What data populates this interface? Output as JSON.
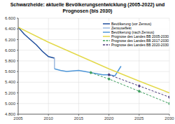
{
  "chart_data": {
    "type": "line",
    "title": "Schwarzheide: aktuelle Bevölkerungsentwicklung (2005-2022) und Prognosen (bis 2030)",
    "xlim": [
      2005,
      2030
    ],
    "xticks": [
      2005,
      2010,
      2015,
      2020,
      2025,
      2030
    ],
    "ylim": [
      4800,
      6600
    ],
    "yticks": [
      {
        "value": 4800,
        "label": "4.800"
      },
      {
        "value": 5000,
        "label": "5.000"
      },
      {
        "value": 5200,
        "label": "5.200"
      },
      {
        "value": 5400,
        "label": "5.400"
      },
      {
        "value": 5600,
        "label": "5.600"
      },
      {
        "value": 5800,
        "label": "5.800"
      },
      {
        "value": 6000,
        "label": "6.000"
      },
      {
        "value": 6200,
        "label": "6.200"
      },
      {
        "value": 6400,
        "label": "6.400"
      },
      {
        "value": 6600,
        "label": "6.600"
      }
    ],
    "grid": true,
    "legend": "upper right",
    "series": [
      {
        "name": "Bevölkerung (vor Zensus)",
        "color": "#1f4e9c",
        "line_style": "solid",
        "x": [
          2005,
          2006,
          2007,
          2008,
          2009,
          2010,
          2011
        ],
        "values": [
          6430,
          6300,
          6200,
          6100,
          5980,
          5880,
          5850
        ]
      },
      {
        "name": "Zensuseffekt",
        "color": "#9db8de",
        "line_style": "solid",
        "x": [
          2011,
          2011
        ],
        "values": [
          5850,
          5650
        ]
      },
      {
        "name": "Bevölkerung (nach Zensus)",
        "color": "#4f97d9",
        "line_style": "solid",
        "x": [
          2011,
          2012,
          2013,
          2014,
          2015,
          2016,
          2017,
          2018,
          2019,
          2020,
          2021,
          2022
        ],
        "values": [
          5650,
          5620,
          5600,
          5610,
          5620,
          5600,
          5580,
          5560,
          5540,
          5540,
          5520,
          5700
        ]
      },
      {
        "name": "Prognose des Landes BB 2005-2030",
        "color": "#e3d94a",
        "line_style": "solid",
        "x": [
          2005,
          2010,
          2015,
          2020,
          2025,
          2030
        ],
        "values": [
          6430,
          6150,
          5900,
          5650,
          5420,
          5200
        ]
      },
      {
        "name": "Prognose des Landes BB 2017-2030",
        "color": "#3a9d5b",
        "line_style": "dashed",
        "marker": "circle",
        "x": [
          2017,
          2020,
          2025,
          2030
        ],
        "values": [
          5580,
          5460,
          5230,
          5000
        ]
      },
      {
        "name": "Prognose des Landes BB 2020-2030",
        "color": "#4b3a7a",
        "line_style": "dashed",
        "marker": "circle",
        "x": [
          2020,
          2025,
          2030
        ],
        "values": [
          5540,
          5330,
          5120
        ]
      }
    ]
  }
}
